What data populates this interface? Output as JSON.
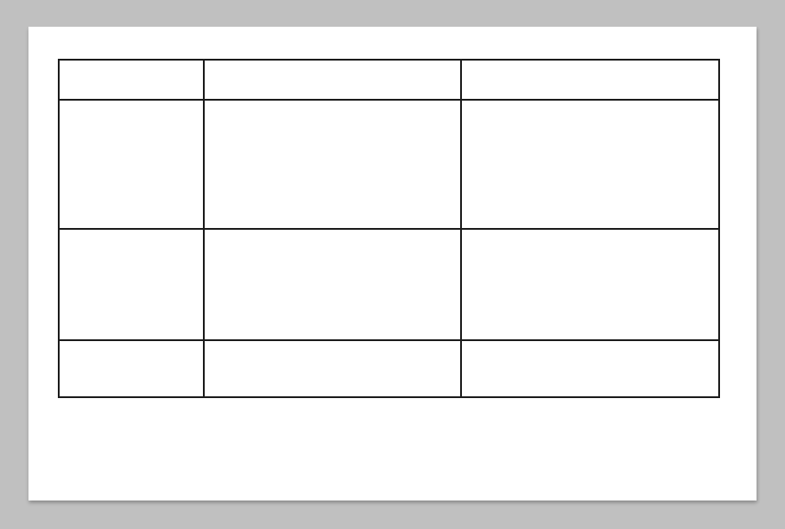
{
  "colors": {
    "background": "#c0c0c0",
    "page": "#ffffff",
    "table_border": "#1c1c1c"
  },
  "table": {
    "column_count": 3,
    "row_count": 4,
    "rows": [
      [
        "",
        "",
        ""
      ],
      [
        "",
        "",
        ""
      ],
      [
        "",
        "",
        ""
      ],
      [
        "",
        "",
        ""
      ]
    ]
  }
}
